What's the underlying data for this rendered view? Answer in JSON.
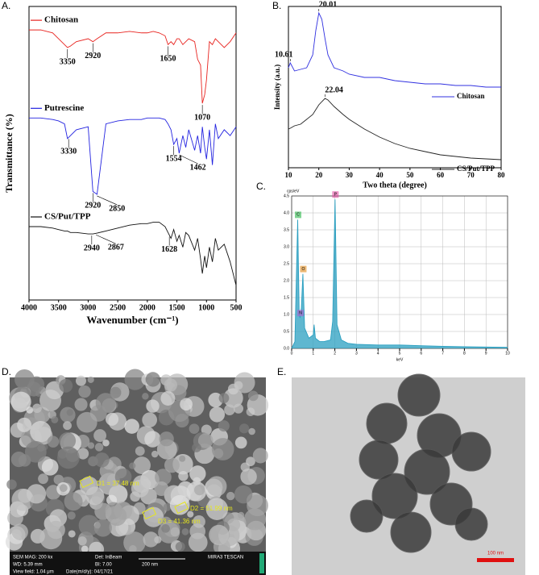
{
  "chart_data": [
    {
      "type": "line",
      "xlabel": "Wavenumber (cm⁻¹)",
      "ylabel": "Transmittance (%)",
      "xlim": [
        4000,
        500
      ],
      "xticks": [
        4000,
        3500,
        3000,
        2500,
        2000,
        1500,
        1000,
        500
      ],
      "ylim": [
        0,
        100
      ],
      "x": [
        4000,
        3800,
        3600,
        3500,
        3400,
        3350,
        3300,
        3200,
        3000,
        2920,
        2850,
        2700,
        2500,
        2300,
        2100,
        2000,
        1900,
        1800,
        1700,
        1650,
        1600,
        1554,
        1500,
        1462,
        1400,
        1350,
        1300,
        1200,
        1150,
        1100,
        1070,
        1030,
        1000,
        950,
        900,
        850,
        800,
        700,
        600,
        500
      ],
      "series": [
        {
          "name": "Chitosan",
          "color": "#e8231f",
          "values": [
            92,
            92,
            91,
            89,
            87,
            86,
            86.5,
            88,
            89,
            88,
            89,
            91,
            91,
            91.5,
            91,
            91,
            91.5,
            91,
            90,
            87,
            88,
            87,
            89,
            89,
            87,
            88,
            89,
            88,
            82,
            80,
            67,
            70,
            75,
            88,
            87,
            89,
            88,
            86,
            88,
            91
          ]
        },
        {
          "name": "Putrescine",
          "color": "#2323e0",
          "values": [
            62,
            62,
            61.5,
            61,
            60,
            55,
            56,
            58,
            59,
            37,
            36,
            60,
            61,
            61.5,
            61.5,
            62,
            62,
            62,
            61.5,
            60,
            58,
            53,
            55,
            50,
            56,
            52,
            58,
            51,
            56,
            50,
            59,
            52,
            48,
            58,
            46,
            60,
            55,
            58,
            56,
            59
          ]
        },
        {
          "name": "CS/Put/TPP",
          "color": "#111111",
          "values": [
            25,
            25,
            24.5,
            24,
            23.5,
            23.5,
            23,
            23,
            22.5,
            22.5,
            22.8,
            23.5,
            24.5,
            25.5,
            26,
            26,
            26.5,
            26.5,
            25,
            23,
            21,
            24,
            20,
            22,
            18,
            23,
            22,
            17,
            21,
            14,
            9,
            15,
            11,
            18,
            13,
            21,
            17,
            19,
            13,
            5
          ]
        }
      ],
      "annotations": [
        {
          "x": 3350,
          "series": 0
        },
        {
          "x": 2920,
          "series": 0
        },
        {
          "x": 1650,
          "series": 0
        },
        {
          "x": 1070,
          "series": 0
        },
        {
          "x": 3330,
          "series": 1
        },
        {
          "x": 2920,
          "series": 1
        },
        {
          "x": 2850,
          "series": 1
        },
        {
          "x": 1554,
          "series": 1
        },
        {
          "x": 1462,
          "series": 1
        },
        {
          "x": 2940,
          "series": 2
        },
        {
          "x": 2867,
          "series": 2
        },
        {
          "x": 1628,
          "series": 2
        }
      ]
    },
    {
      "type": "line",
      "xlabel": "Two theta (degree)",
      "ylabel": "Intensity (a.u.)",
      "xlim": [
        10,
        80
      ],
      "xticks": [
        10,
        20,
        30,
        40,
        50,
        60,
        70,
        80
      ],
      "ylim": [
        0,
        100
      ],
      "x": [
        10,
        10.61,
        12,
        14,
        16,
        18,
        19,
        20.01,
        21,
        22.04,
        23,
        25,
        28,
        30,
        35,
        40,
        45,
        50,
        55,
        60,
        65,
        70,
        75,
        80
      ],
      "series": [
        {
          "name": "Chitosan",
          "color": "#3030e0",
          "values": [
            62,
            65,
            60,
            61,
            62,
            70,
            85,
            96,
            92,
            80,
            70,
            62,
            60,
            58,
            56,
            56,
            54,
            53,
            52,
            52,
            51,
            51,
            50,
            50
          ]
        },
        {
          "name": "CS/Put/TPP",
          "color": "#222222",
          "values": [
            24,
            24.5,
            26,
            27,
            30,
            33,
            36,
            39,
            41,
            43,
            42,
            38,
            33,
            30,
            24,
            19,
            15,
            12,
            10,
            8,
            7,
            6,
            5.5,
            5
          ]
        }
      ],
      "annotations": [
        {
          "x": 10.61,
          "series": 0
        },
        {
          "x": 20.01,
          "series": 0
        },
        {
          "x": 22.04,
          "series": 1
        }
      ]
    },
    {
      "type": "area",
      "xlabel": "keV",
      "ylabel": "cps/eV",
      "xlim": [
        0,
        10
      ],
      "xticks": [
        0,
        1,
        2,
        3,
        4,
        5,
        6,
        7,
        8,
        9,
        10
      ],
      "ylim": [
        0,
        4.5
      ],
      "yticks": [
        {
          "value": 0,
          "label": "0.0"
        },
        0.5,
        {
          "value": 1,
          "label": "1.0"
        },
        1.5,
        {
          "value": 2,
          "label": "2.0"
        },
        2.5,
        {
          "value": 3,
          "label": "3.0"
        },
        3.5,
        {
          "value": 4,
          "label": "4.0"
        },
        4.5
      ],
      "grid": true,
      "x": [
        0,
        0.15,
        0.28,
        0.35,
        0.39,
        0.45,
        0.52,
        0.6,
        0.8,
        1.0,
        1.04,
        1.1,
        1.3,
        1.5,
        1.8,
        1.9,
        2.01,
        2.1,
        2.3,
        2.6,
        3,
        4,
        5,
        6,
        7,
        8,
        9,
        10
      ],
      "series": [
        {
          "color": "#2a9fc0",
          "values": [
            0,
            0.2,
            3.8,
            1.0,
            0.9,
            1.2,
            2.2,
            0.6,
            0.3,
            0.4,
            0.7,
            0.3,
            0.2,
            0.2,
            0.25,
            0.8,
            4.4,
            0.7,
            0.25,
            0.15,
            0.12,
            0.1,
            0.1,
            0.08,
            0.06,
            0.05,
            0.04,
            0.03
          ]
        }
      ],
      "elements": [
        {
          "label": "C",
          "x": 0.28,
          "color": "#2db84a"
        },
        {
          "label": "N",
          "x": 0.39,
          "color": "#b05fd0"
        },
        {
          "label": "O",
          "x": 0.52,
          "color": "#e08a1a"
        },
        {
          "label": "P",
          "x": 2.01,
          "color": "#e04aa0"
        }
      ]
    }
  ],
  "panels": [
    "A.",
    "B.",
    "C.",
    "D.",
    "E."
  ],
  "images": {
    "sem": {
      "measurements": [
        "D1 = 37.48 nm",
        "D2 = 51.99 nm",
        "D3 = 41.36 nm"
      ],
      "info": [
        "SEM MAG: 200 kx",
        "Det: InBeam",
        "MIRA3 TESCAN",
        "WD: 5.39 mm",
        "BI: 7.00",
        "200 nm",
        "View field: 1.04 μm",
        "Date(m/d/y): 04/17/21"
      ]
    },
    "tem": {
      "scale_bar": "100 nm"
    }
  }
}
